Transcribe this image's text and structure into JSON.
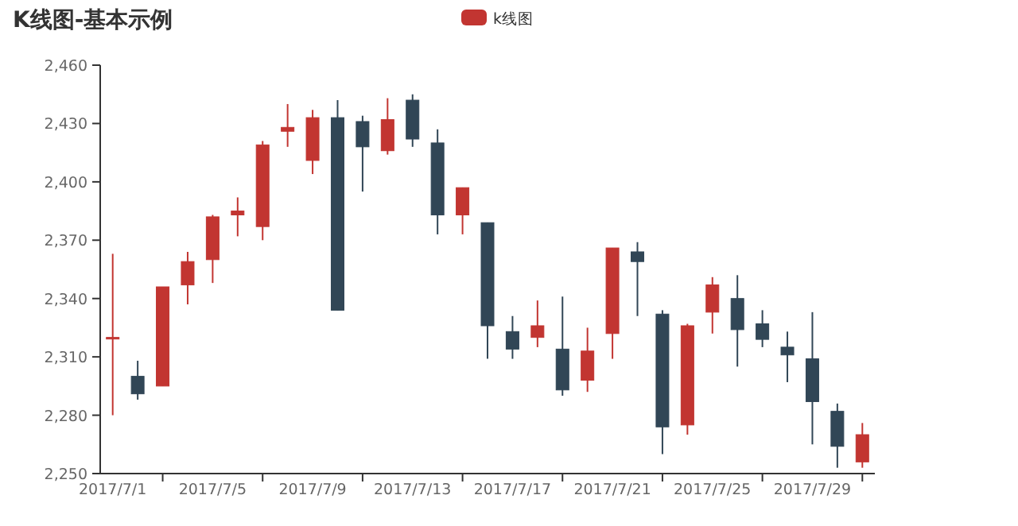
{
  "chart_data": {
    "type": "candlestick",
    "title": "K线图-基本示例",
    "categories": [
      "2017/7/1",
      null,
      null,
      null,
      "2017/7/5",
      null,
      null,
      null,
      "2017/7/9",
      null,
      null,
      null,
      "2017/7/13",
      null,
      null,
      null,
      "2017/7/17",
      null,
      null,
      null,
      "2017/7/21",
      null,
      null,
      null,
      "2017/7/25",
      null,
      null,
      null,
      "2017/7/29",
      null,
      null
    ],
    "ylim": [
      2250,
      2460
    ],
    "yticks": [
      {
        "value": 2250,
        "label": "2,250"
      },
      {
        "value": 2280,
        "label": "2,280"
      },
      {
        "value": 2310,
        "label": "2,310"
      },
      {
        "value": 2340,
        "label": "2,340"
      },
      {
        "value": 2370,
        "label": "2,370"
      },
      {
        "value": 2400,
        "label": "2,400"
      },
      {
        "value": 2430,
        "label": "2,430"
      },
      {
        "value": 2460,
        "label": "2,460"
      }
    ],
    "legend": "top",
    "grid": false,
    "series": [
      {
        "name": "k线图",
        "color": "#c23531",
        "colors": [
          "#c23531",
          "#314656",
          "#c23531",
          "#c23531",
          "#c23531",
          "#c23531",
          "#c23531",
          "#c23531",
          "#c23531",
          "#314656",
          "#314656",
          "#c23531",
          "#314656",
          "#314656",
          "#c23531",
          "#314656",
          "#314656",
          "#c23531",
          "#314656",
          "#c23531",
          "#c23531",
          "#314656",
          "#314656",
          "#c23531",
          "#c23531",
          "#314656",
          "#314656",
          "#314656",
          "#314656",
          "#314656",
          "#c23531"
        ],
        "ohlc": [
          [
            2320,
            2363,
            2280,
            2320
          ],
          [
            2300,
            2308,
            2288,
            2291
          ],
          [
            2295,
            2346,
            2295,
            2346
          ],
          [
            2347,
            2364,
            2337,
            2359
          ],
          [
            2360,
            2383,
            2348,
            2382
          ],
          [
            2383,
            2392,
            2372,
            2385
          ],
          [
            2377,
            2421,
            2370,
            2419
          ],
          [
            2426,
            2440,
            2418,
            2428
          ],
          [
            2411,
            2437,
            2404,
            2433
          ],
          [
            2433,
            2442,
            2334,
            2334
          ],
          [
            2431,
            2434,
            2395,
            2418
          ],
          [
            2416,
            2443,
            2414,
            2432
          ],
          [
            2442,
            2445,
            2418,
            2422
          ],
          [
            2420,
            2427,
            2373,
            2383
          ],
          [
            2383,
            2397,
            2373,
            2397
          ],
          [
            2379,
            2379,
            2309,
            2326
          ],
          [
            2323,
            2331,
            2309,
            2314
          ],
          [
            2320,
            2339,
            2315,
            2326
          ],
          [
            2314,
            2341,
            2290,
            2293
          ],
          [
            2298,
            2325,
            2292,
            2313
          ],
          [
            2322,
            2366,
            2309,
            2366
          ],
          [
            2364,
            2369,
            2331,
            2359
          ],
          [
            2332,
            2334,
            2260,
            2274
          ],
          [
            2275,
            2327,
            2270,
            2326
          ],
          [
            2333,
            2351,
            2322,
            2347
          ],
          [
            2340,
            2352,
            2305,
            2324
          ],
          [
            2327,
            2334,
            2315,
            2319
          ],
          [
            2315,
            2323,
            2297,
            2311
          ],
          [
            2309,
            2333,
            2265,
            2287
          ],
          [
            2282,
            2286,
            2253,
            2264
          ],
          [
            2256,
            2276,
            2253,
            2270
          ]
        ]
      }
    ]
  }
}
